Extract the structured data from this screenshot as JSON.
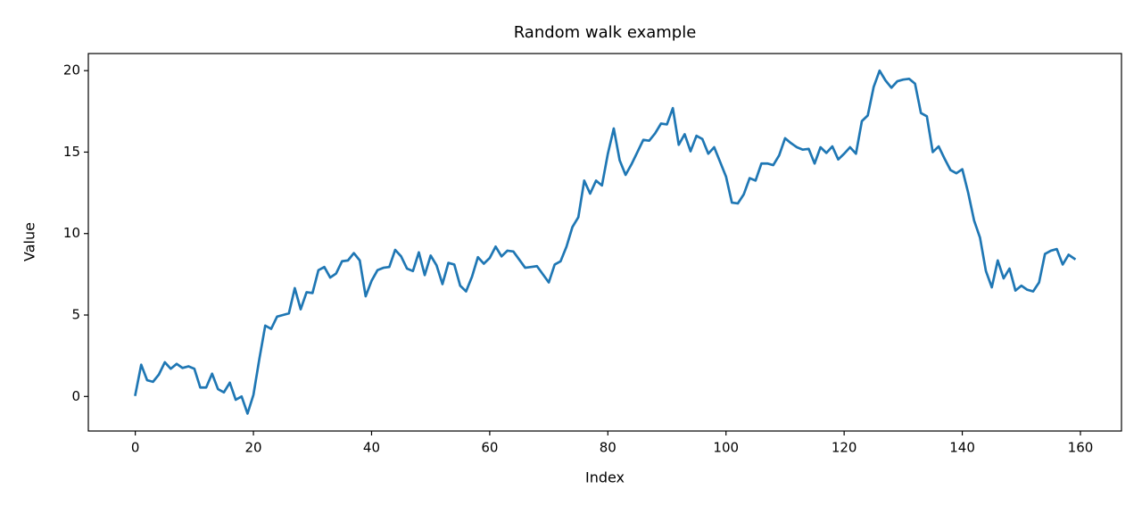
{
  "chart_data": {
    "type": "line",
    "title": "Random walk example",
    "xlabel": "Index",
    "ylabel": "Value",
    "x": [
      0,
      1,
      2,
      3,
      4,
      5,
      6,
      7,
      8,
      9,
      10,
      11,
      12,
      13,
      14,
      15,
      16,
      17,
      18,
      19,
      20,
      21,
      22,
      23,
      24,
      25,
      26,
      27,
      28,
      29,
      30,
      31,
      32,
      33,
      34,
      35,
      36,
      37,
      38,
      39,
      40,
      41,
      42,
      43,
      44,
      45,
      46,
      47,
      48,
      49,
      50,
      51,
      52,
      53,
      54,
      55,
      56,
      57,
      58,
      59,
      60,
      61,
      62,
      63,
      64,
      65,
      66,
      67,
      68,
      69,
      70,
      71,
      72,
      73,
      74,
      75,
      76,
      77,
      78,
      79,
      80,
      81,
      82,
      83,
      84,
      85,
      86,
      87,
      88,
      89,
      90,
      91,
      92,
      93,
      94,
      95,
      96,
      97,
      98,
      99,
      100,
      101,
      102,
      103,
      104,
      105,
      106,
      107,
      108,
      109,
      110,
      111,
      112,
      113,
      114,
      115,
      116,
      117,
      118,
      119,
      120,
      121,
      122,
      123,
      124,
      125,
      126,
      127,
      128,
      129,
      130,
      131,
      132,
      133,
      134,
      135,
      136,
      137,
      138,
      139,
      140,
      141,
      142,
      143,
      144,
      145,
      146,
      147,
      148,
      149,
      150,
      151,
      152,
      153,
      154,
      155,
      156,
      157,
      158,
      159
    ],
    "series": [
      {
        "name": "Value",
        "color": "#1f77b4",
        "values": [
          0.1,
          1.95,
          1.0,
          0.9,
          1.35,
          2.1,
          1.7,
          2.0,
          1.75,
          1.85,
          1.7,
          0.55,
          0.55,
          1.4,
          0.45,
          0.25,
          0.85,
          -0.2,
          0.0,
          -1.05,
          0.1,
          2.3,
          4.35,
          4.15,
          4.9,
          5.0,
          5.1,
          6.65,
          5.35,
          6.4,
          6.35,
          7.75,
          7.95,
          7.3,
          7.55,
          8.3,
          8.35,
          8.8,
          8.35,
          6.15,
          7.1,
          7.75,
          7.9,
          7.95,
          9.0,
          8.6,
          7.85,
          7.7,
          8.85,
          7.45,
          8.65,
          8.05,
          6.9,
          8.2,
          8.1,
          6.8,
          6.45,
          7.35,
          8.55,
          8.15,
          8.5,
          9.2,
          8.6,
          8.95,
          8.9,
          8.4,
          7.9,
          7.95,
          8.0,
          7.5,
          7.0,
          8.1,
          8.3,
          9.2,
          10.4,
          11.0,
          13.25,
          12.45,
          13.25,
          12.95,
          14.9,
          16.45,
          14.5,
          13.6,
          14.25,
          15.0,
          15.75,
          15.7,
          16.15,
          16.75,
          16.7,
          17.7,
          15.45,
          16.1,
          15.05,
          16.0,
          15.8,
          14.9,
          15.3,
          14.4,
          13.5,
          11.9,
          11.85,
          12.4,
          13.4,
          13.25,
          14.3,
          14.3,
          14.2,
          14.8,
          15.85,
          15.55,
          15.3,
          15.15,
          15.2,
          14.3,
          15.3,
          14.95,
          15.35,
          14.55,
          14.9,
          15.3,
          14.9,
          16.9,
          17.25,
          19.0,
          20.0,
          19.4,
          18.95,
          19.35,
          19.45,
          19.5,
          19.2,
          17.4,
          17.2,
          15.0,
          15.35,
          14.6,
          13.9,
          13.7,
          13.95,
          12.5,
          10.8,
          9.75,
          7.7,
          6.7,
          8.35,
          7.25,
          7.85,
          6.5,
          6.8,
          6.55,
          6.45,
          7.0,
          8.75,
          8.95,
          9.05,
          8.1,
          8.7,
          8.45
        ]
      }
    ],
    "xlim": [
      -7.95,
      166.95
    ],
    "ylim": [
      -2.12,
      21.05
    ],
    "xticks": [
      0,
      20,
      40,
      60,
      80,
      100,
      120,
      140,
      160
    ],
    "yticks": [
      0,
      5,
      10,
      15,
      20
    ],
    "grid": false
  }
}
